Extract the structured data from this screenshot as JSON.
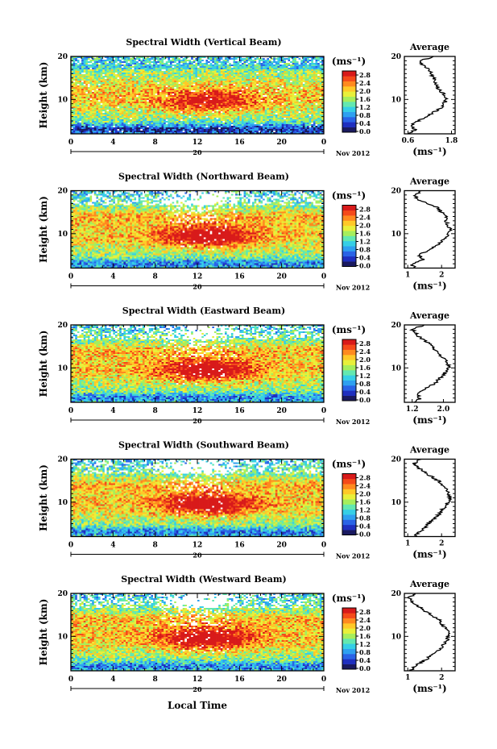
{
  "figure": {
    "xlabel": "Local Time",
    "date_label": "Nov 2012",
    "day_label": "20"
  },
  "chart_data": {
    "type": "heatmap",
    "xlabel": "Local Time",
    "ylabel": "Height (km)",
    "x_ticks": [
      "0",
      "4",
      "8",
      "12",
      "16",
      "20",
      "0"
    ],
    "y_ticks": [
      "10",
      "20"
    ],
    "xlim": [
      0,
      24
    ],
    "ylim": [
      2,
      20
    ],
    "colorbar": {
      "unit": "(ms⁻¹)",
      "ticks": [
        "0.0",
        "0.4",
        "0.8",
        "1.2",
        "1.6",
        "2.0",
        "2.4",
        "2.8"
      ],
      "range": [
        0.0,
        2.8
      ],
      "colors": [
        "#1a1a60",
        "#1f2fbf",
        "#2a63e6",
        "#2fa0f0",
        "#36cfe6",
        "#63e8b0",
        "#a6ee5c",
        "#e8f03a",
        "#ffc928",
        "#ff8a1f",
        "#f54a1a",
        "#d81a1a"
      ]
    },
    "panels": [
      {
        "title": "Spectral Width (Vertical Beam)",
        "avg": {
          "title": "Average",
          "xunit": "(ms⁻¹)",
          "xticks": [
            "0.6",
            "1.8"
          ],
          "xlim": [
            0.5,
            1.9
          ],
          "heights": [
            2,
            3,
            4,
            5,
            6,
            7,
            8,
            9,
            10,
            11,
            12,
            13,
            14,
            15,
            16,
            17,
            18,
            19,
            20
          ],
          "values": [
            0.6,
            0.8,
            0.7,
            0.9,
            1.1,
            1.3,
            1.5,
            1.6,
            1.65,
            1.6,
            1.5,
            1.4,
            1.35,
            1.3,
            1.25,
            1.2,
            1.0,
            0.95,
            1.3
          ]
        }
      },
      {
        "title": "Spectral Width (Northward Beam)",
        "avg": {
          "title": "Average",
          "xunit": "(ms⁻¹)",
          "xticks": [
            "1",
            "2"
          ],
          "xlim": [
            0.9,
            2.4
          ],
          "heights": [
            2,
            3,
            4,
            5,
            6,
            7,
            8,
            9,
            10,
            11,
            12,
            13,
            14,
            15,
            16,
            17,
            18,
            19,
            20
          ],
          "values": [
            1.2,
            1.1,
            1.5,
            1.3,
            1.6,
            1.8,
            1.95,
            2.1,
            2.2,
            2.25,
            2.2,
            2.1,
            2.15,
            2.0,
            1.9,
            1.6,
            1.3,
            1.2,
            1.4
          ]
        }
      },
      {
        "title": "Spectral Width (Eastward Beam)",
        "avg": {
          "title": "Average",
          "xunit": "(ms⁻¹)",
          "xticks": [
            "1.2",
            "2.0"
          ],
          "xlim": [
            1.0,
            2.3
          ],
          "heights": [
            2,
            3,
            4,
            5,
            6,
            7,
            8,
            9,
            10,
            11,
            12,
            13,
            14,
            15,
            16,
            17,
            18,
            19,
            20
          ],
          "values": [
            1.3,
            1.4,
            1.3,
            1.5,
            1.7,
            1.85,
            1.95,
            2.05,
            2.15,
            2.1,
            2.05,
            1.9,
            1.8,
            1.75,
            1.6,
            1.4,
            1.3,
            1.2,
            1.5
          ]
        }
      },
      {
        "title": "Spectral Width (Southward Beam)",
        "avg": {
          "title": "Average",
          "xunit": "(ms⁻¹)",
          "xticks": [
            "1",
            "2"
          ],
          "xlim": [
            0.9,
            2.4
          ],
          "heights": [
            2,
            3,
            4,
            5,
            6,
            7,
            8,
            9,
            10,
            11,
            12,
            13,
            14,
            15,
            16,
            17,
            18,
            19,
            20
          ],
          "values": [
            1.2,
            1.35,
            1.5,
            1.6,
            1.75,
            1.9,
            2.0,
            2.1,
            2.2,
            2.25,
            2.2,
            2.15,
            2.0,
            1.9,
            1.7,
            1.5,
            1.3,
            1.2,
            1.4
          ]
        }
      },
      {
        "title": "Spectral Width (Westward Beam)",
        "avg": {
          "title": "Average",
          "xunit": "(ms⁻¹)",
          "xticks": [
            "1",
            "2"
          ],
          "xlim": [
            0.9,
            2.4
          ],
          "heights": [
            2,
            3,
            4,
            5,
            6,
            7,
            8,
            9,
            10,
            11,
            12,
            13,
            14,
            15,
            16,
            17,
            18,
            19,
            20
          ],
          "values": [
            1.1,
            1.2,
            1.4,
            1.6,
            1.8,
            1.95,
            2.05,
            2.15,
            2.2,
            2.2,
            2.1,
            2.0,
            1.9,
            1.7,
            1.5,
            1.3,
            1.15,
            1.05,
            1.2
          ]
        }
      }
    ]
  }
}
